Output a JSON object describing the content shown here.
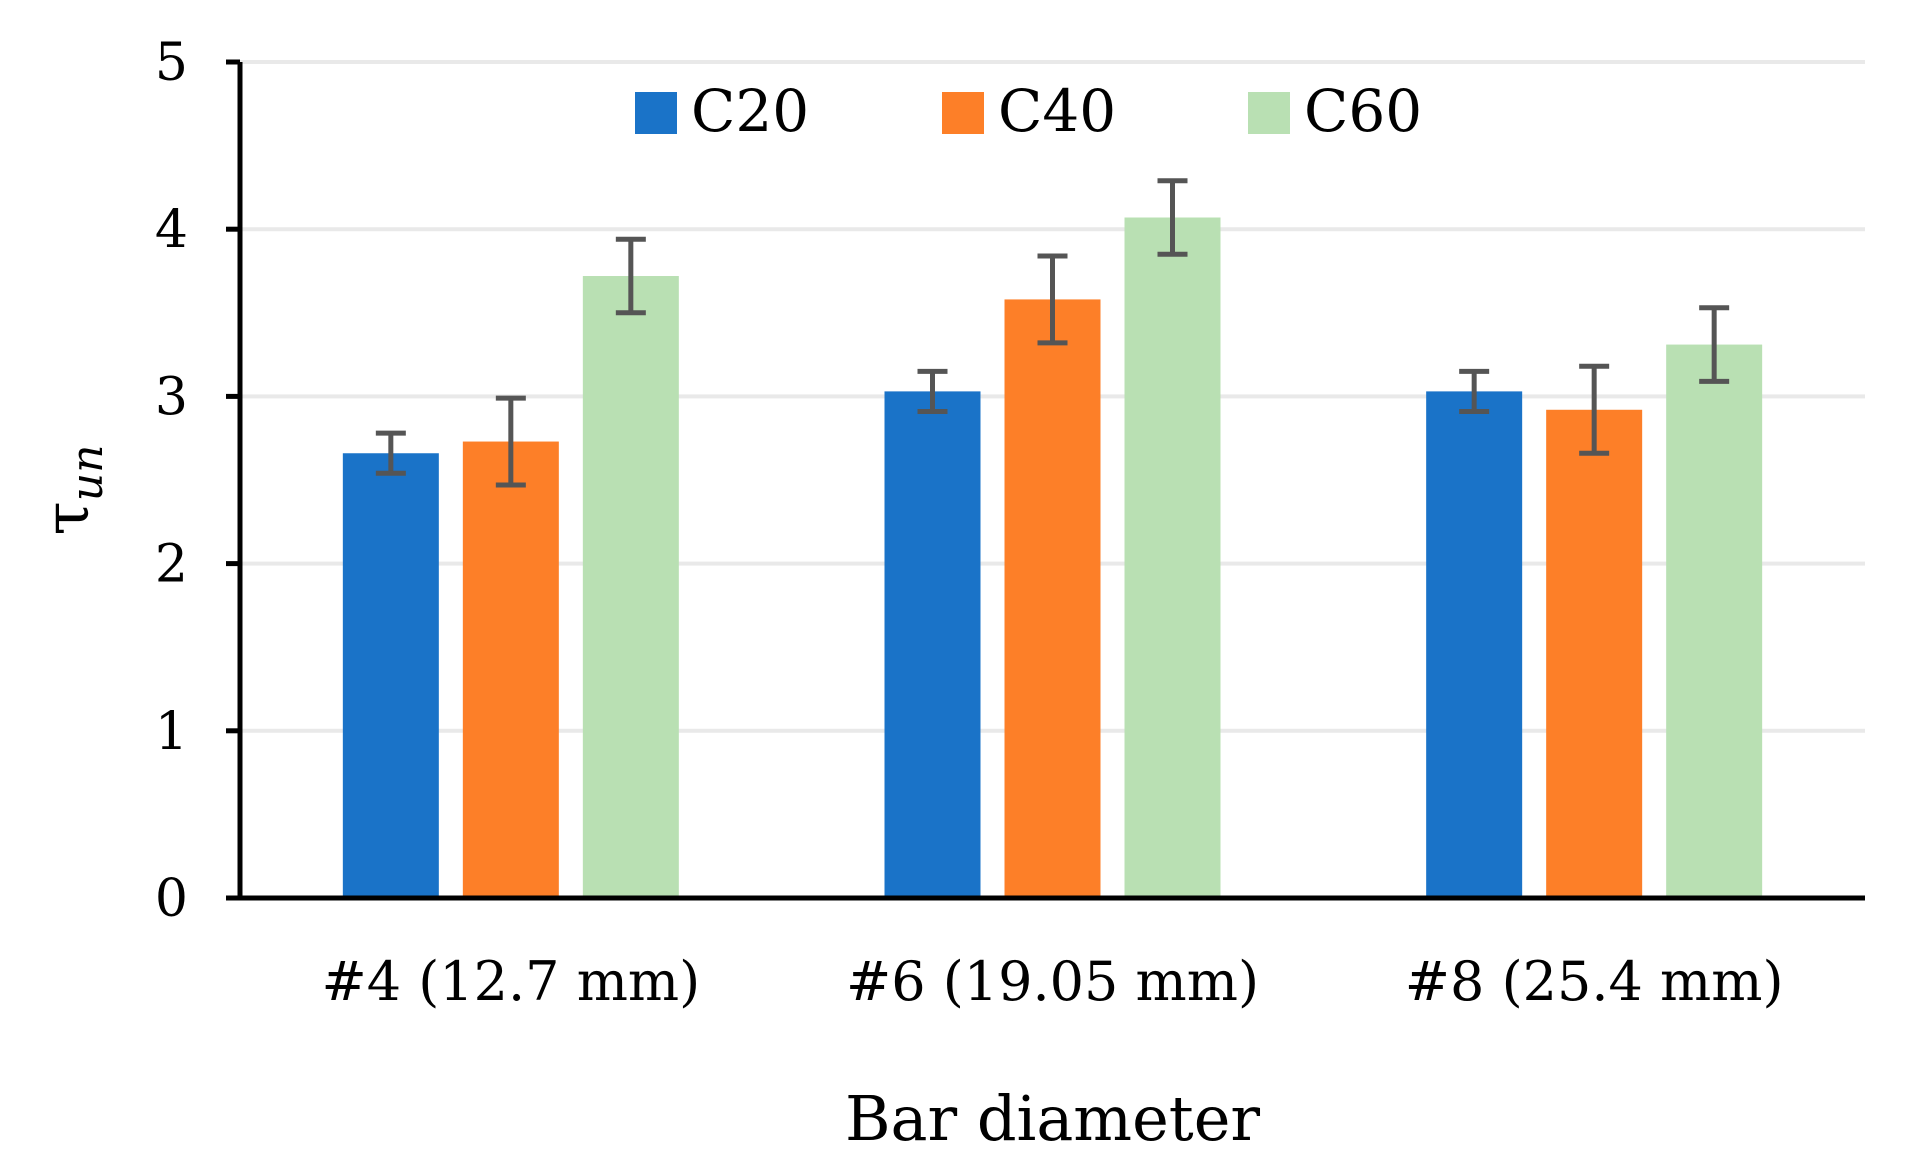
{
  "chart_data": {
    "type": "bar",
    "title": "",
    "xlabel": "Bar diameter",
    "ylabel": "τ",
    "ylabel_subscript": "un",
    "ylim": [
      0,
      5
    ],
    "yticks": [
      "0",
      "1",
      "2",
      "3",
      "4",
      "5"
    ],
    "grid": true,
    "legend_position": "top-center",
    "categories": [
      "#4 (12.7 mm)",
      "#6 (19.05 mm)",
      "#8 (25.4 mm)"
    ],
    "series": [
      {
        "name": "C20",
        "color": "#1a73c8",
        "values": [
          2.66,
          3.03,
          3.03
        ],
        "errors": [
          0.12,
          0.12,
          0.12
        ]
      },
      {
        "name": "C40",
        "color": "#fd7f28",
        "values": [
          2.73,
          3.58,
          2.92
        ],
        "errors": [
          0.26,
          0.26,
          0.26
        ]
      },
      {
        "name": "C60",
        "color": "#b9e0b3",
        "values": [
          3.72,
          4.07,
          3.31
        ],
        "errors": [
          0.22,
          0.22,
          0.22
        ]
      }
    ]
  }
}
